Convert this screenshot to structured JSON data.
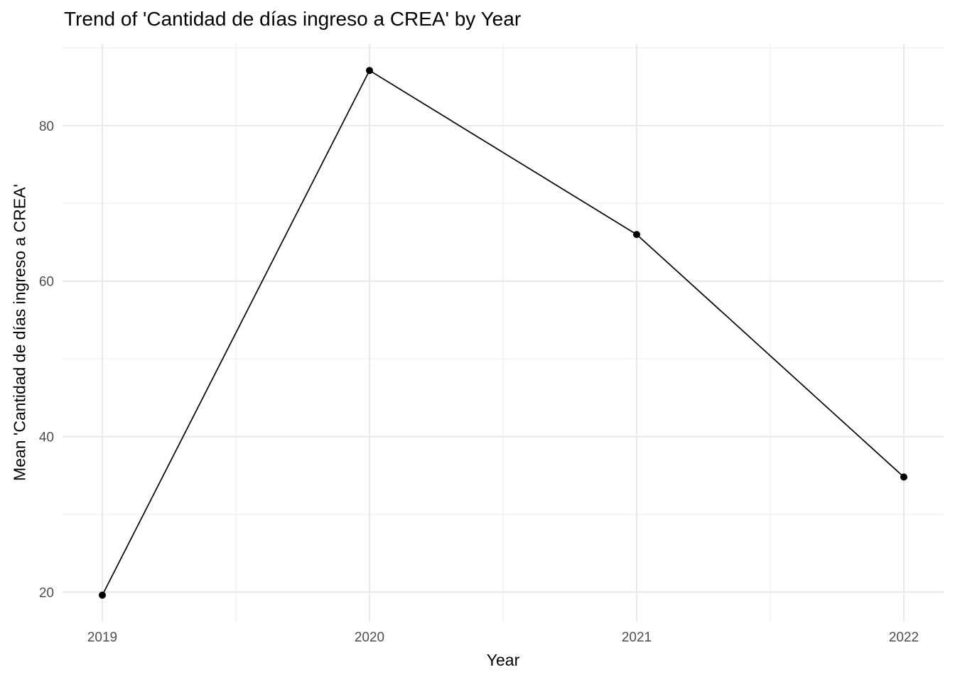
{
  "title": "Trend of 'Cantidad de días ingreso a CREA' by Year",
  "chart_data": {
    "type": "line",
    "categories": [
      "2019",
      "2020",
      "2021",
      "2022"
    ],
    "values": [
      19.6,
      87.1,
      66.0,
      34.8
    ],
    "title": "Trend of 'Cantidad de días ingreso a CREA' by Year",
    "xlabel": "Year",
    "ylabel": "Mean 'Cantidad de días ingreso a CREA'",
    "x_tick_labels": [
      "2019",
      "2020",
      "2021",
      "2022"
    ],
    "y_tick_labels": [
      "20",
      "40",
      "60",
      "80"
    ],
    "y_major_ticks": [
      20,
      40,
      60,
      80
    ],
    "y_minor_ticks": [
      30,
      50,
      70,
      90
    ],
    "ylim": [
      16.2,
      90.5
    ],
    "grid": "major+minor",
    "legend_position": "none",
    "colors": {
      "line": "#000000",
      "point": "#000000",
      "grid_major": "#E8E8E8",
      "grid_minor": "#F0F0F0",
      "tick_label": "#4D4D4D",
      "title_text": "#000000",
      "background": "#FFFFFF"
    }
  }
}
